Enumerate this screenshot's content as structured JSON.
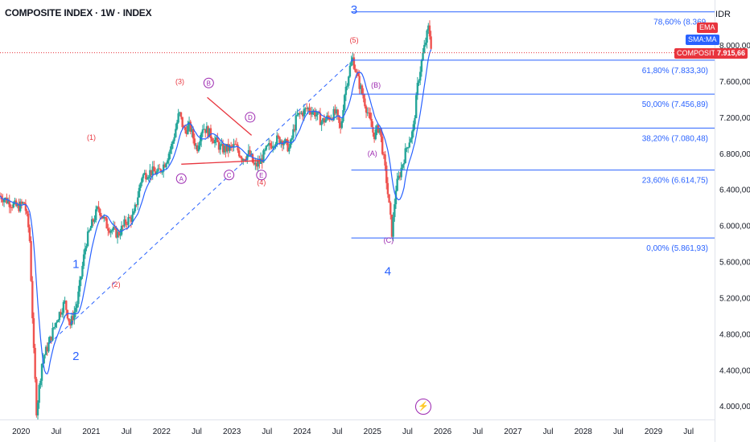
{
  "header": {
    "title": "COMPOSITE INDEX · 1W · INDEX",
    "currency": "IDR"
  },
  "tags": {
    "ema": "EMA",
    "sma": "SMA:MA",
    "composite_name": "COMPOSITE",
    "composite_value": "7.915,66"
  },
  "colors": {
    "candle_up": "#26a69a",
    "candle_down": "#ef5350",
    "ma_line": "#2962ff",
    "fib_line": "#2962ff",
    "wave_primary": "#2962ff",
    "wave_minor": "#e8353e",
    "wave_abc": "#9c27b0",
    "triangle": "#e8353e",
    "last_price_line": "#e8353e"
  },
  "chart_data": {
    "type": "candlestick",
    "interval": "1W",
    "y_ticks": [
      "8.000,00",
      "7.600,00",
      "7.200,00",
      "6.800,00",
      "6.400,00",
      "6.000,00",
      "5.600,00",
      "5.200,00",
      "4.800,00",
      "4.400,00",
      "4.000,00"
    ],
    "ylim": [
      3850,
      8500
    ],
    "x_ticks": [
      {
        "label": "2020",
        "t": 2020.0
      },
      {
        "label": "Jul",
        "t": 2020.5
      },
      {
        "label": "2021",
        "t": 2021.0
      },
      {
        "label": "Jul",
        "t": 2021.5
      },
      {
        "label": "2022",
        "t": 2022.0
      },
      {
        "label": "Jul",
        "t": 2022.5
      },
      {
        "label": "2023",
        "t": 2023.0
      },
      {
        "label": "Jul",
        "t": 2023.5
      },
      {
        "label": "2024",
        "t": 2024.0
      },
      {
        "label": "Jul",
        "t": 2024.5
      },
      {
        "label": "2025",
        "t": 2025.0
      },
      {
        "label": "Jul",
        "t": 2025.5
      },
      {
        "label": "2026",
        "t": 2026.0
      },
      {
        "label": "Jul",
        "t": 2026.5
      },
      {
        "label": "2027",
        "t": 2027.0
      },
      {
        "label": "Jul",
        "t": 2027.5
      },
      {
        "label": "2028",
        "t": 2028.0
      },
      {
        "label": "Jul",
        "t": 2028.5
      },
      {
        "label": "2029",
        "t": 2029.0
      },
      {
        "label": "Jul",
        "t": 2029.5
      }
    ],
    "xlim": [
      2019.7,
      2029.87
    ],
    "last_price": 7915.66,
    "price_path": [
      [
        2019.7,
        6330
      ],
      [
        2019.85,
        6250
      ],
      [
        2019.95,
        6200
      ],
      [
        2020.05,
        6250
      ],
      [
        2020.12,
        5900
      ],
      [
        2020.18,
        4600
      ],
      [
        2020.22,
        3940
      ],
      [
        2020.3,
        4500
      ],
      [
        2020.4,
        4700
      ],
      [
        2020.5,
        4950
      ],
      [
        2020.62,
        5150
      ],
      [
        2020.7,
        4900
      ],
      [
        2020.8,
        5150
      ],
      [
        2020.92,
        5800
      ],
      [
        2021.0,
        6000
      ],
      [
        2021.1,
        6200
      ],
      [
        2021.22,
        6000
      ],
      [
        2021.38,
        5900
      ],
      [
        2021.5,
        6050
      ],
      [
        2021.6,
        6100
      ],
      [
        2021.72,
        6550
      ],
      [
        2021.85,
        6600
      ],
      [
        2021.95,
        6580
      ],
      [
        2022.05,
        6700
      ],
      [
        2022.15,
        6900
      ],
      [
        2022.25,
        7250
      ],
      [
        2022.32,
        7050
      ],
      [
        2022.4,
        7100
      ],
      [
        2022.5,
        6850
      ],
      [
        2022.58,
        7100
      ],
      [
        2022.65,
        7050
      ],
      [
        2022.75,
        6950
      ],
      [
        2022.85,
        6850
      ],
      [
        2022.95,
        6850
      ],
      [
        2023.05,
        6880
      ],
      [
        2023.15,
        6750
      ],
      [
        2023.25,
        6800
      ],
      [
        2023.32,
        6650
      ],
      [
        2023.4,
        6700
      ],
      [
        2023.5,
        6850
      ],
      [
        2023.62,
        6950
      ],
      [
        2023.72,
        6950
      ],
      [
        2023.82,
        6850
      ],
      [
        2023.92,
        7200
      ],
      [
        2024.0,
        7250
      ],
      [
        2024.08,
        7300
      ],
      [
        2024.18,
        7250
      ],
      [
        2024.28,
        7150
      ],
      [
        2024.38,
        7200
      ],
      [
        2024.48,
        7250
      ],
      [
        2024.55,
        7050
      ],
      [
        2024.6,
        7450
      ],
      [
        2024.68,
        7750
      ],
      [
        2024.72,
        7850
      ],
      [
        2024.8,
        7600
      ],
      [
        2024.88,
        7400
      ],
      [
        2024.95,
        7200
      ],
      [
        2025.02,
        7000
      ],
      [
        2025.1,
        7100
      ],
      [
        2025.15,
        6800
      ],
      [
        2025.2,
        6500
      ],
      [
        2025.28,
        5900
      ],
      [
        2025.33,
        6400
      ],
      [
        2025.4,
        6600
      ],
      [
        2025.5,
        6900
      ],
      [
        2025.58,
        7050
      ],
      [
        2025.65,
        7600
      ],
      [
        2025.72,
        7900
      ],
      [
        2025.8,
        8200
      ],
      [
        2025.85,
        7915
      ]
    ],
    "fib_levels": [
      {
        "label": "78,60% (8.369,",
        "value": 8369
      },
      {
        "label": "61,80% (7.833,30)",
        "value": 7833.3
      },
      {
        "label": "50,00% (7.456,89)",
        "value": 7456.89
      },
      {
        "label": "38,20% (7.080,48)",
        "value": 7080.48
      },
      {
        "label": "23,60% (6.614,75)",
        "value": 6614.75
      },
      {
        "label": "0,00% (5.861,93)",
        "value": 5861.93
      }
    ],
    "fib_t_start": 2024.7,
    "waves_primary": [
      {
        "label": "1",
        "t": 2020.78,
        "v": 5530
      },
      {
        "label": "2",
        "t": 2020.78,
        "v": 4510
      },
      {
        "label": "3",
        "t": 2024.74,
        "v": 8350
      },
      {
        "label": "4",
        "t": 2025.22,
        "v": 5450
      }
    ],
    "waves_minor": [
      {
        "label": "(1)",
        "t": 2021.0,
        "v": 6950
      },
      {
        "label": "(2)",
        "t": 2021.35,
        "v": 5320
      },
      {
        "label": "(3)",
        "t": 2022.26,
        "v": 7570
      },
      {
        "label": "(4)",
        "t": 2023.42,
        "v": 6450
      },
      {
        "label": "(5)",
        "t": 2024.74,
        "v": 8030
      }
    ],
    "waves_abc_plain": [
      {
        "label": "(A)",
        "t": 2025.0,
        "v": 6770
      },
      {
        "label": "(B)",
        "t": 2025.05,
        "v": 7530
      },
      {
        "label": "(C)",
        "t": 2025.23,
        "v": 5810
      }
    ],
    "waves_circled": [
      {
        "label": "A",
        "t": 2022.28,
        "v": 6520
      },
      {
        "label": "B",
        "t": 2022.67,
        "v": 7580
      },
      {
        "label": "C",
        "t": 2022.96,
        "v": 6560
      },
      {
        "label": "D",
        "t": 2023.26,
        "v": 7200
      },
      {
        "label": "E",
        "t": 2023.42,
        "v": 6560
      }
    ],
    "triangle_lines": [
      [
        [
          2022.28,
          6680
        ],
        [
          2023.4,
          6720
        ]
      ],
      [
        [
          2022.65,
          7420
        ],
        [
          2023.28,
          7000
        ]
      ]
    ],
    "trend_channel": [
      [
        2020.4,
        4690
      ],
      [
        2024.74,
        7850
      ]
    ]
  }
}
